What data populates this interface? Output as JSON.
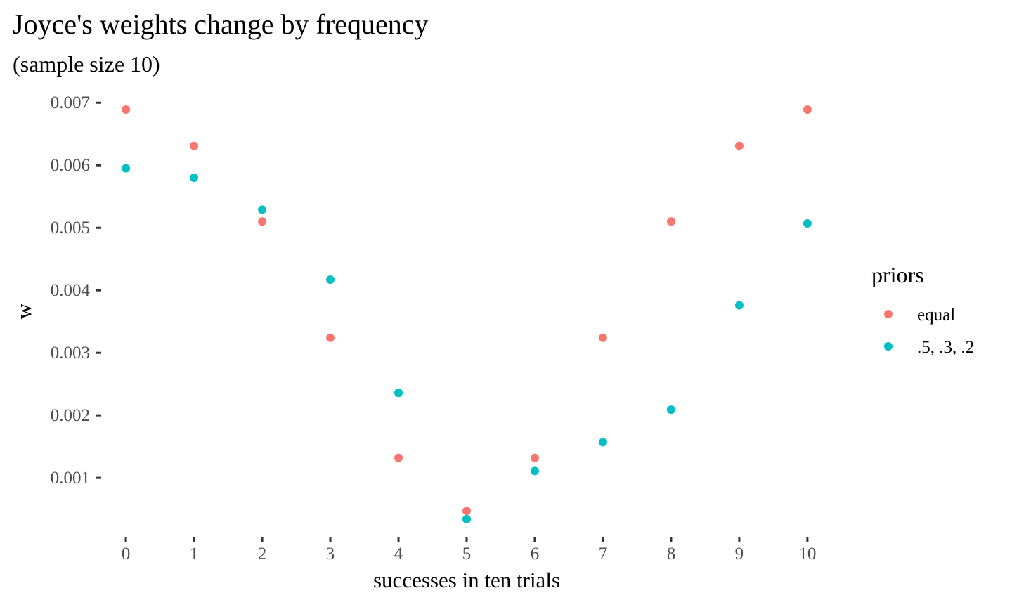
{
  "chart_data": {
    "type": "scatter",
    "title": "Joyce's weights change  by frequency",
    "subtitle": "(sample size 10)",
    "xlabel": "successes in ten trials",
    "ylabel": "w",
    "x": [
      0,
      1,
      2,
      3,
      4,
      5,
      6,
      7,
      8,
      9,
      10
    ],
    "xticks": [
      "0",
      "1",
      "2",
      "3",
      "4",
      "5",
      "6",
      "7",
      "8",
      "9",
      "10"
    ],
    "yticks": [
      "0.001",
      "0.002",
      "0.003",
      "0.004",
      "0.005",
      "0.006",
      "0.007"
    ],
    "ytick_values": [
      0.001,
      0.002,
      0.003,
      0.004,
      0.005,
      0.006,
      0.007
    ],
    "xlim": [
      -0.3,
      10.3
    ],
    "ylim": [
      0.000125,
      0.00716
    ],
    "grid": false,
    "legend": {
      "title": "priors",
      "position": "right"
    },
    "series": [
      {
        "name": "equal",
        "color": "#F8766D",
        "values": [
          0.00689,
          0.00631,
          0.0051,
          0.00324,
          0.00132,
          0.00047,
          0.00132,
          0.00324,
          0.0051,
          0.00631,
          0.00689
        ]
      },
      {
        "name": ".5, .3, .2",
        "color": "#00BFC4",
        "values": [
          0.00595,
          0.0058,
          0.00529,
          0.00417,
          0.00236,
          0.00034,
          0.00111,
          0.00157,
          0.00209,
          0.00376,
          0.00507
        ]
      }
    ]
  }
}
